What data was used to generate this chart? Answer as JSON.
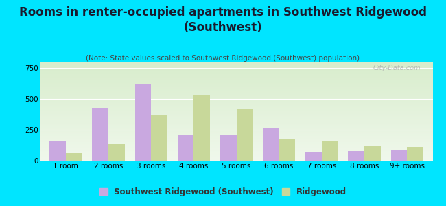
{
  "title": "Rooms in renter-occupied apartments in Southwest Ridgewood\n(Southwest)",
  "subtitle": "(Note: State values scaled to Southwest Ridgewood (Southwest) population)",
  "categories": [
    "1 room",
    "2 rooms",
    "3 rooms",
    "4 rooms",
    "5 rooms",
    "6 rooms",
    "7 rooms",
    "8 rooms",
    "9+ rooms"
  ],
  "southwest_values": [
    155,
    420,
    620,
    205,
    210,
    265,
    75,
    80,
    85
  ],
  "ridgewood_values": [
    60,
    140,
    375,
    535,
    415,
    175,
    155,
    125,
    110
  ],
  "southwest_color": "#c9a8e0",
  "ridgewood_color": "#c8d89a",
  "background_color": "#00e5ff",
  "ylim": [
    0,
    800
  ],
  "yticks": [
    0,
    250,
    500,
    750
  ],
  "bar_width": 0.38,
  "legend_sw_label": "Southwest Ridgewood (Southwest)",
  "legend_rw_label": "Ridgewood",
  "watermark": "City-Data.com",
  "title_fontsize": 12,
  "subtitle_fontsize": 7.5,
  "axis_fontsize": 7.5,
  "legend_fontsize": 8.5
}
